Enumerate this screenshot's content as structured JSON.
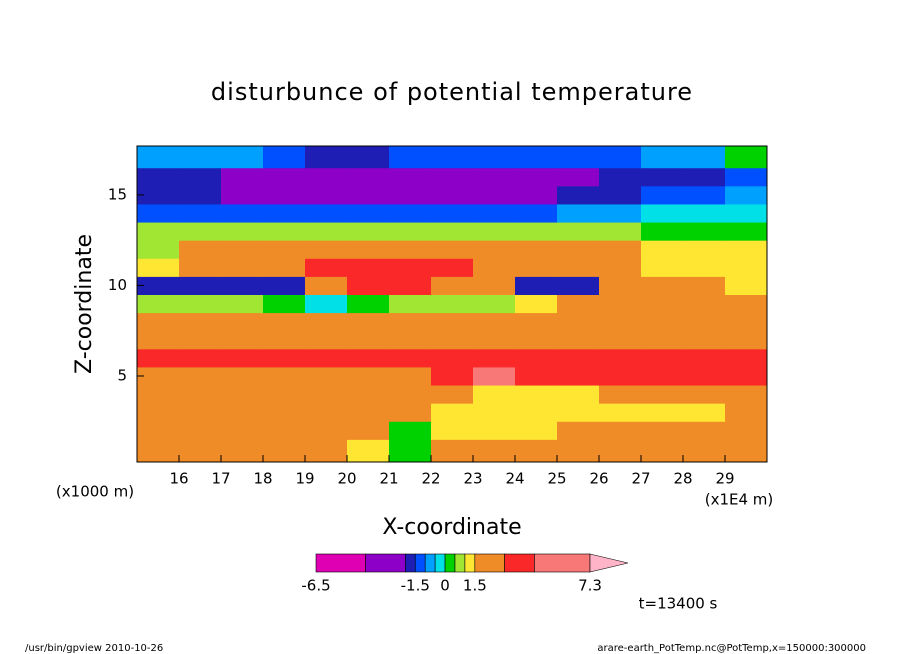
{
  "chart_data": {
    "type": "contour",
    "title": "disturbunce of potential temperature",
    "xlabel": "X-coordinate",
    "ylabel": "Z-coordinate",
    "yunit": "(x1000 m)",
    "xunit": "(x1E4 m)",
    "time_label": "t=13400 s",
    "footer_left": "/usr/bin/gpview  2010-10-26",
    "footer_right": "arare-earth_PotTemp.nc@PotTemp,x=150000:300000",
    "xlim": [
      15,
      30
    ],
    "ylim": [
      0.25,
      17.7
    ],
    "xticks": [
      16,
      17,
      18,
      19,
      20,
      21,
      22,
      23,
      24,
      25,
      26,
      27,
      28,
      29
    ],
    "yticks": [
      5,
      10,
      15
    ],
    "x": [
      15.5,
      16.5,
      17.5,
      18.5,
      19.5,
      20.5,
      21.5,
      22.5,
      23.5,
      24.5,
      25.5,
      26.5,
      27.5,
      28.5,
      29.5
    ],
    "z": [
      1,
      2,
      3,
      4,
      5,
      6,
      7,
      8,
      9,
      10,
      11,
      12,
      13,
      14,
      15,
      16,
      17
    ],
    "values": [
      [
        1.6,
        1.7,
        1.8,
        1.7,
        1.6,
        1.4,
        0.3,
        1.7,
        1.8,
        1.6,
        1.7,
        1.8,
        1.9,
        1.8,
        1.7
      ],
      [
        2.0,
        2.1,
        2.0,
        2.0,
        1.9,
        1.8,
        0.3,
        1.2,
        1.4,
        1.3,
        1.8,
        2.0,
        2.1,
        2.0,
        2.0
      ],
      [
        2.0,
        2.2,
        2.2,
        2.1,
        2.0,
        2.0,
        1.6,
        1.4,
        1.3,
        1.3,
        1.2,
        1.3,
        1.4,
        1.3,
        1.8
      ],
      [
        2.2,
        2.4,
        2.5,
        2.3,
        2.2,
        2.2,
        2.0,
        2.0,
        1.2,
        1.2,
        1.3,
        2.0,
        2.2,
        2.2,
        2.2
      ],
      [
        2.5,
        2.6,
        2.8,
        2.8,
        2.7,
        2.6,
        2.8,
        3.4,
        5.0,
        3.6,
        3.6,
        3.6,
        3.6,
        3.6,
        3.7
      ],
      [
        3.5,
        3.6,
        3.6,
        3.6,
        3.7,
        3.6,
        3.7,
        3.6,
        3.8,
        4.0,
        4.0,
        4.0,
        4.0,
        4.0,
        4.0
      ],
      [
        2.5,
        2.6,
        2.7,
        2.6,
        2.6,
        2.5,
        2.5,
        2.6,
        2.6,
        2.6,
        2.6,
        2.6,
        2.6,
        2.6,
        2.6
      ],
      [
        1.8,
        1.9,
        1.9,
        1.9,
        1.9,
        1.8,
        1.8,
        1.8,
        1.8,
        1.8,
        1.8,
        1.8,
        1.8,
        1.8,
        1.8
      ],
      [
        0.7,
        0.6,
        0.5,
        0.3,
        -0.3,
        0.2,
        0.6,
        0.8,
        0.9,
        1.2,
        1.6,
        1.7,
        1.7,
        1.7,
        1.8
      ],
      [
        -1.8,
        -1.9,
        -1.9,
        -1.9,
        2.0,
        3.5,
        3.6,
        2.0,
        2.0,
        -1.8,
        -1.9,
        2.0,
        2.0,
        2.0,
        1.2
      ],
      [
        1.2,
        2.2,
        2.5,
        2.4,
        3.5,
        3.6,
        3.5,
        3.4,
        2.6,
        2.5,
        2.4,
        2.0,
        1.4,
        1.2,
        1.1
      ],
      [
        0.8,
        2.0,
        2.2,
        2.2,
        2.1,
        2.0,
        2.1,
        2.2,
        2.0,
        2.0,
        1.8,
        1.6,
        1.3,
        1.2,
        1.1
      ],
      [
        0.5,
        0.7,
        0.8,
        0.7,
        0.6,
        0.7,
        0.8,
        0.7,
        0.6,
        0.6,
        0.7,
        0.5,
        0.4,
        0.3,
        0.3
      ],
      [
        -1.2,
        -1.2,
        -1.3,
        -1.3,
        -1.2,
        -1.2,
        -1.2,
        -1.3,
        -1.3,
        -1.2,
        -1.0,
        -0.6,
        -0.3,
        -0.2,
        -0.2
      ],
      [
        -1.7,
        -1.8,
        -2.5,
        -2.6,
        -2.6,
        -2.6,
        -2.6,
        -2.6,
        -2.6,
        -2.5,
        -1.8,
        -1.7,
        -1.2,
        -1.1,
        -0.8
      ],
      [
        -1.6,
        -1.8,
        -3.0,
        -3.0,
        -3.1,
        -3.0,
        -3.0,
        -3.0,
        -3.0,
        -3.0,
        -2.6,
        -1.8,
        -1.7,
        -1.6,
        -1.2
      ],
      [
        -0.8,
        -0.7,
        -0.8,
        -1.2,
        -1.7,
        -1.7,
        -1.3,
        -1.2,
        -1.2,
        -1.2,
        -1.2,
        -1.1,
        -0.8,
        -0.7,
        0.3
      ]
    ],
    "colorbar": {
      "levels": [
        -6.5,
        -4,
        -2,
        -1.5,
        -1,
        -0.5,
        0,
        0.5,
        1,
        1.5,
        3,
        4.5,
        7.3
      ],
      "colors": [
        "#e000b4",
        "#8c00c8",
        "#1e1eb4",
        "#0050ff",
        "#00a0ff",
        "#00e0e6",
        "#00d200",
        "#a0e632",
        "#ffe632",
        "#f08c28",
        "#fa2828",
        "#f87878",
        "#ffb4c8"
      ],
      "ticks": [
        -6.5,
        -1.5,
        0,
        1.5,
        7.3
      ]
    }
  }
}
